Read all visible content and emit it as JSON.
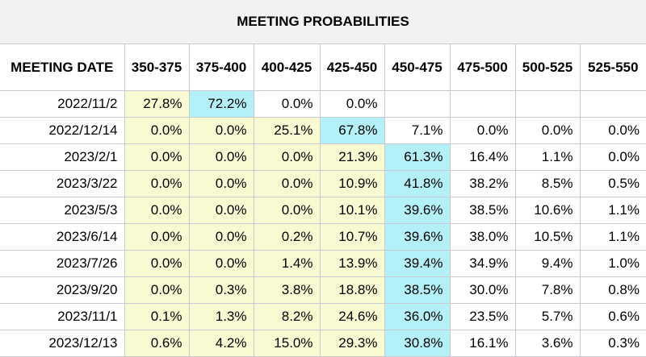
{
  "title": "MEETING PROBABILITIES",
  "header": {
    "date_label": "MEETING DATE",
    "columns": [
      "350-375",
      "375-400",
      "400-425",
      "425-450",
      "450-475",
      "475-500",
      "500-525",
      "525-550"
    ]
  },
  "colors": {
    "yellow": "#fafad2",
    "cyan": "#b3f0f8",
    "grid": "#c9c9d4",
    "title_bg": "#f2f2f2"
  },
  "rows": [
    {
      "date": "2022/11/2",
      "values": [
        "27.8%",
        "72.2%",
        "0.0%",
        "0.0%",
        "",
        "",
        "",
        ""
      ],
      "cells": [
        "yellow",
        "cyan",
        "white",
        "white",
        "white",
        "white",
        "white",
        "white"
      ]
    },
    {
      "date": "2022/12/14",
      "values": [
        "0.0%",
        "0.0%",
        "25.1%",
        "67.8%",
        "7.1%",
        "0.0%",
        "0.0%",
        "0.0%"
      ],
      "cells": [
        "yellow",
        "yellow",
        "yellow",
        "cyan",
        "white",
        "white",
        "white",
        "white"
      ]
    },
    {
      "date": "2023/2/1",
      "values": [
        "0.0%",
        "0.0%",
        "0.0%",
        "21.3%",
        "61.3%",
        "16.4%",
        "1.1%",
        "0.0%"
      ],
      "cells": [
        "yellow",
        "yellow",
        "yellow",
        "yellow",
        "cyan",
        "white",
        "white",
        "white"
      ]
    },
    {
      "date": "2023/3/22",
      "values": [
        "0.0%",
        "0.0%",
        "0.0%",
        "10.9%",
        "41.8%",
        "38.2%",
        "8.5%",
        "0.5%"
      ],
      "cells": [
        "yellow",
        "yellow",
        "yellow",
        "yellow",
        "cyan",
        "white",
        "white",
        "white"
      ]
    },
    {
      "date": "2023/5/3",
      "values": [
        "0.0%",
        "0.0%",
        "0.0%",
        "10.1%",
        "39.6%",
        "38.5%",
        "10.6%",
        "1.1%"
      ],
      "cells": [
        "yellow",
        "yellow",
        "yellow",
        "yellow",
        "cyan",
        "white",
        "white",
        "white"
      ]
    },
    {
      "date": "2023/6/14",
      "values": [
        "0.0%",
        "0.0%",
        "0.2%",
        "10.7%",
        "39.6%",
        "38.0%",
        "10.5%",
        "1.1%"
      ],
      "cells": [
        "yellow",
        "yellow",
        "yellow",
        "yellow",
        "cyan",
        "white",
        "white",
        "white"
      ]
    },
    {
      "date": "2023/7/26",
      "values": [
        "0.0%",
        "0.0%",
        "1.4%",
        "13.9%",
        "39.4%",
        "34.9%",
        "9.4%",
        "1.0%"
      ],
      "cells": [
        "yellow",
        "yellow",
        "yellow",
        "yellow",
        "cyan",
        "white",
        "white",
        "white"
      ]
    },
    {
      "date": "2023/9/20",
      "values": [
        "0.0%",
        "0.3%",
        "3.8%",
        "18.8%",
        "38.5%",
        "30.0%",
        "7.8%",
        "0.8%"
      ],
      "cells": [
        "yellow",
        "yellow",
        "yellow",
        "yellow",
        "cyan",
        "white",
        "white",
        "white"
      ]
    },
    {
      "date": "2023/11/1",
      "values": [
        "0.1%",
        "1.3%",
        "8.2%",
        "24.6%",
        "36.0%",
        "23.5%",
        "5.7%",
        "0.6%"
      ],
      "cells": [
        "yellow",
        "yellow",
        "yellow",
        "yellow",
        "cyan",
        "white",
        "white",
        "white"
      ]
    },
    {
      "date": "2023/12/13",
      "values": [
        "0.6%",
        "4.2%",
        "15.0%",
        "29.3%",
        "30.8%",
        "16.1%",
        "3.6%",
        "0.3%"
      ],
      "cells": [
        "yellow",
        "yellow",
        "yellow",
        "yellow",
        "cyan",
        "white",
        "white",
        "white"
      ]
    }
  ]
}
